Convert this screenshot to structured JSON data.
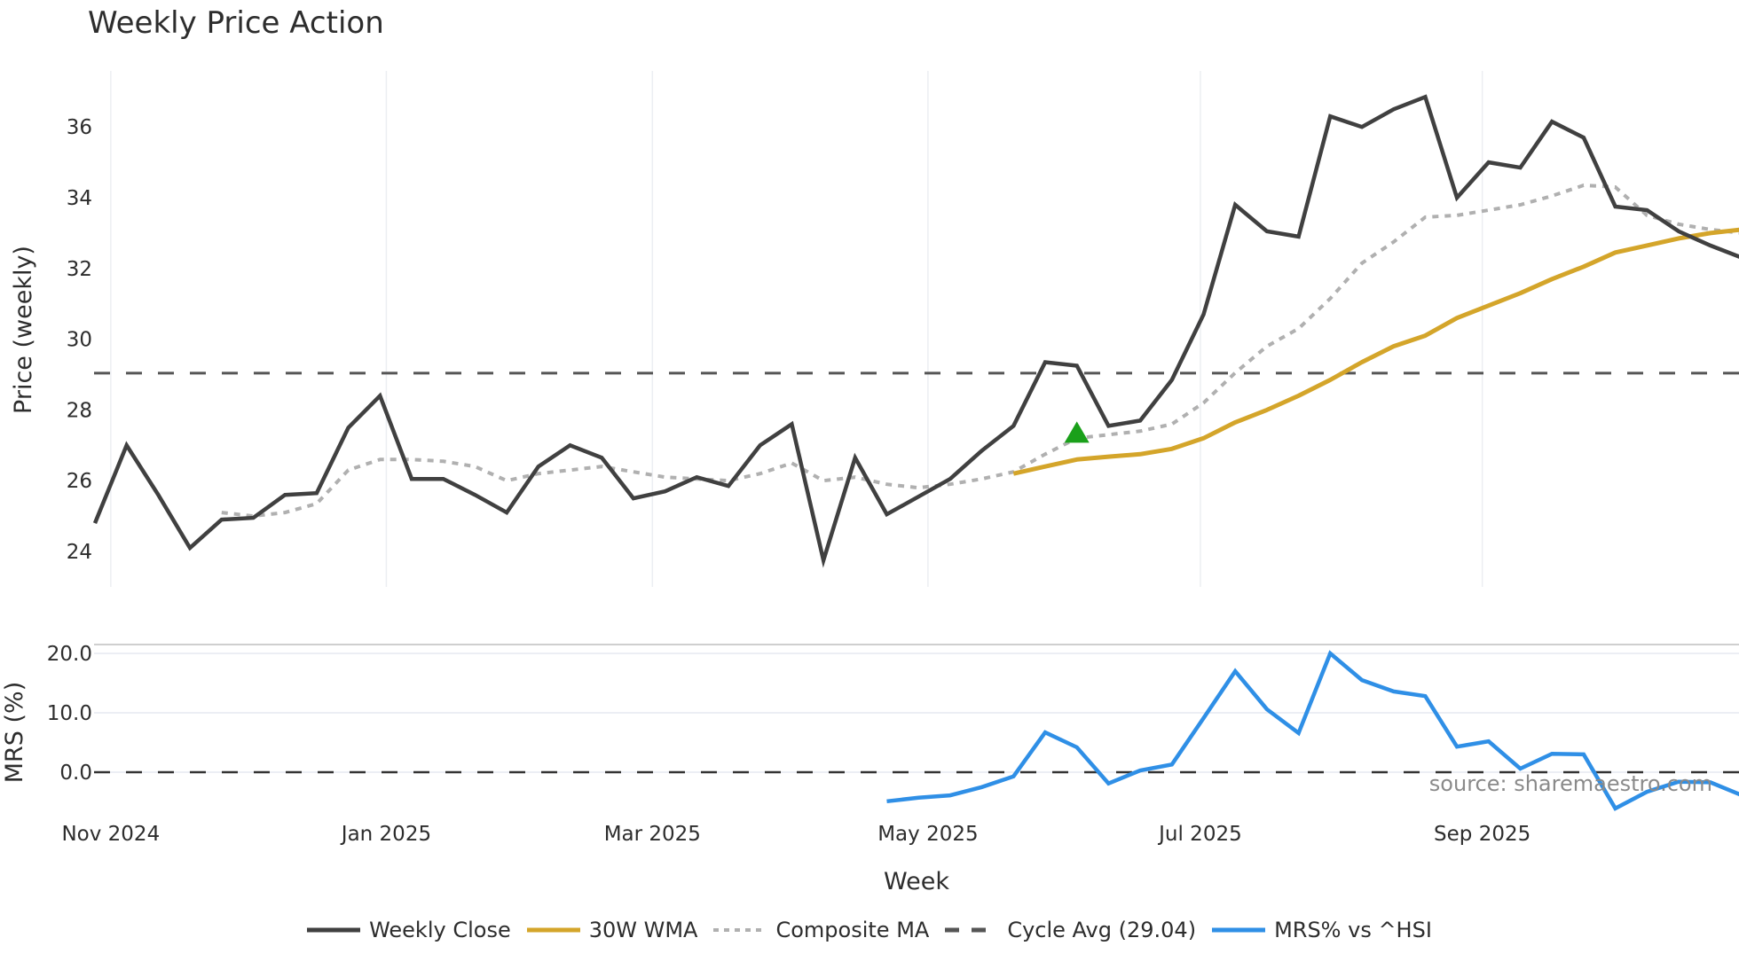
{
  "title": "Weekly Price Action",
  "source": "source: sharemaestro.com",
  "legend": [
    {
      "key": "close",
      "label": "Weekly Close",
      "color": "#404040",
      "style": "solid"
    },
    {
      "key": "wma",
      "label": "30W WMA",
      "color": "#d4a52a",
      "style": "solid"
    },
    {
      "key": "ma",
      "label": "Composite MA",
      "color": "#b0b0b0",
      "style": "dotted"
    },
    {
      "key": "cycle",
      "label": "Cycle Avg (29.04)",
      "color": "#555555",
      "style": "dashed"
    },
    {
      "key": "mrs",
      "label": "MRS% vs ^HSI",
      "color": "#2f8fe6",
      "style": "solid"
    }
  ],
  "chart_data": [
    {
      "type": "line",
      "title": "Weekly Price Action",
      "xlabel": "Week",
      "ylabel": "Price (weekly)",
      "ylim": [
        23.5,
        37.5
      ],
      "yticks": [
        24,
        26,
        28,
        30,
        32,
        34,
        36
      ],
      "x_tick_labels": [
        "Nov 2024",
        "Jan 2025",
        "Mar 2025",
        "May 2025",
        "Jul 2025",
        "Sep 2025"
      ],
      "x_tick_week_index": [
        0.5,
        9.2,
        17.6,
        26.3,
        34.9,
        43.8
      ],
      "grid": "vertical",
      "x": [
        0,
        1,
        2,
        3,
        4,
        5,
        6,
        7,
        8,
        9,
        10,
        11,
        12,
        13,
        14,
        15,
        16,
        17,
        18,
        19,
        20,
        21,
        22,
        23,
        24,
        25,
        26,
        27,
        28,
        29,
        30,
        31,
        32,
        33,
        34,
        35,
        36,
        37,
        38,
        39,
        40,
        41,
        42,
        43,
        44,
        45,
        46,
        47,
        48,
        49,
        50,
        51,
        52
      ],
      "series": [
        {
          "name": "Weekly Close",
          "start_index": 0,
          "values": [
            24.8,
            27.0,
            25.6,
            24.1,
            24.9,
            24.95,
            25.6,
            25.65,
            27.5,
            28.4,
            26.05,
            26.05,
            25.6,
            25.1,
            26.4,
            27.0,
            26.65,
            25.5,
            25.7,
            26.1,
            25.85,
            27.0,
            27.6,
            23.75,
            26.65,
            25.05,
            25.55,
            26.05,
            26.85,
            27.55,
            29.35,
            29.25,
            27.55,
            27.7,
            28.85,
            30.7,
            33.8,
            33.05,
            32.9,
            36.3,
            36.0,
            36.5,
            36.85,
            34.0,
            35.0,
            34.85,
            36.15,
            35.7,
            33.75,
            33.65,
            33.05,
            32.65,
            32.3
          ]
        },
        {
          "name": "30W WMA",
          "start_index": 29,
          "values": [
            26.2,
            26.4,
            26.6,
            26.68,
            26.75,
            26.9,
            27.2,
            27.65,
            28.0,
            28.4,
            28.85,
            29.35,
            29.8,
            30.1,
            30.6,
            30.95,
            31.3,
            31.7,
            32.05,
            32.45,
            32.65,
            32.85,
            33.0,
            33.1,
            33.2
          ]
        },
        {
          "name": "Composite MA",
          "start_index": 4,
          "values": [
            25.1,
            25.0,
            25.1,
            25.35,
            26.3,
            26.6,
            26.6,
            26.55,
            26.4,
            26.0,
            26.2,
            26.3,
            26.4,
            26.25,
            26.1,
            26.05,
            26.0,
            26.2,
            26.5,
            26.0,
            26.1,
            25.9,
            25.8,
            25.9,
            26.05,
            26.25,
            26.75,
            27.2,
            27.3,
            27.4,
            27.6,
            28.2,
            29.05,
            29.8,
            30.3,
            31.15,
            32.15,
            32.75,
            33.45,
            33.5,
            33.65,
            33.8,
            34.05,
            34.35,
            34.3,
            33.5,
            33.25,
            33.1,
            33.0
          ]
        },
        {
          "name": "Cycle Avg (29.04)",
          "constant": 29.04
        }
      ],
      "markers": [
        {
          "type": "triangle-up",
          "index": 31,
          "value": 27.35,
          "color": "#1aa01a"
        }
      ]
    },
    {
      "type": "line",
      "ylabel": "MRS (%)",
      "ylim": [
        -8,
        21.5
      ],
      "yticks": [
        0.0,
        10.0,
        20.0
      ],
      "ytick_labels": [
        "0.0",
        "10.0",
        "20.0"
      ],
      "reference_line": 0.0,
      "series": [
        {
          "name": "MRS% vs ^HSI",
          "start_index": 25,
          "values": [
            -4.9,
            -4.3,
            -3.9,
            -2.5,
            -0.7,
            6.7,
            4.2,
            -1.9,
            0.3,
            1.3,
            9.1,
            17.0,
            10.6,
            6.6,
            20.0,
            15.5,
            13.6,
            12.8,
            4.3,
            5.2,
            0.6,
            3.1,
            3.0,
            -6.1,
            -3.3,
            -1.6,
            -1.7,
            -3.9
          ]
        }
      ]
    }
  ]
}
